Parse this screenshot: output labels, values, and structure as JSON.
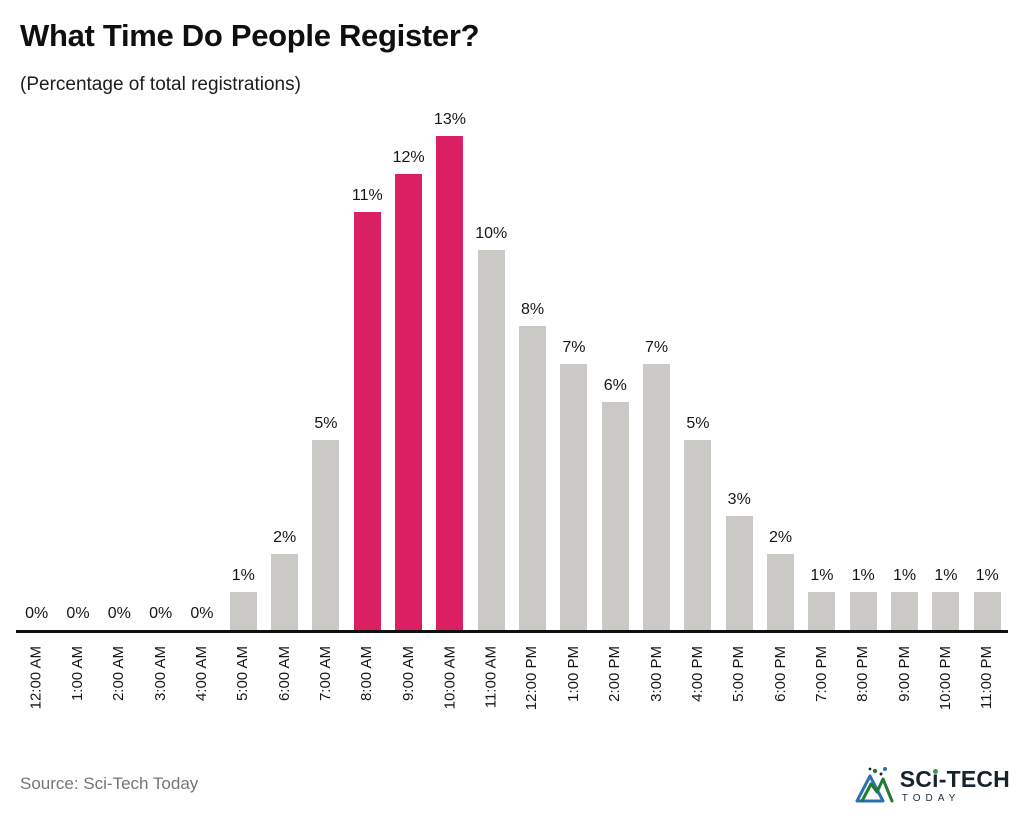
{
  "header": {
    "title": "What Time Do People Register?",
    "subtitle": "(Percentage of total registrations)"
  },
  "chart_data": {
    "type": "bar",
    "title": "What Time Do People Register?",
    "subtitle": "(Percentage of total registrations)",
    "categories": [
      "12:00 AM",
      "1:00 AM",
      "2:00 AM",
      "3:00 AM",
      "4:00 AM",
      "5:00 AM",
      "6:00 AM",
      "7:00 AM",
      "8:00 AM",
      "9:00 AM",
      "10:00 AM",
      "11:00 AM",
      "12:00 PM",
      "1:00 PM",
      "2:00 PM",
      "3:00 PM",
      "4:00 PM",
      "5:00 PM",
      "6:00 PM",
      "7:00 PM",
      "8:00 PM",
      "9:00 PM",
      "10:00 PM",
      "11:00 PM"
    ],
    "values": [
      0,
      0,
      0,
      0,
      0,
      1,
      2,
      5,
      11,
      12,
      13,
      10,
      8,
      7,
      6,
      7,
      5,
      3,
      2,
      1,
      1,
      1,
      1,
      1
    ],
    "unit": "%",
    "value_labels": true,
    "xlabel": "",
    "ylabel": "",
    "ylim": [
      0,
      13
    ],
    "grid": false,
    "legend": false,
    "highlight_categories": [
      "8:00 AM",
      "9:00 AM",
      "10:00 AM"
    ],
    "highlight_indices": [
      8,
      9,
      10
    ],
    "colors": {
      "bar_default": "#CAC9C5",
      "bar_highlight": "#DA1F63",
      "axis": "#0F0F0F"
    }
  },
  "footer": {
    "source": "Source: Sci-Tech Today",
    "logo": {
      "part1": "SC",
      "part2": "i",
      "part3": "-TECH",
      "sub": "TODAY"
    }
  }
}
